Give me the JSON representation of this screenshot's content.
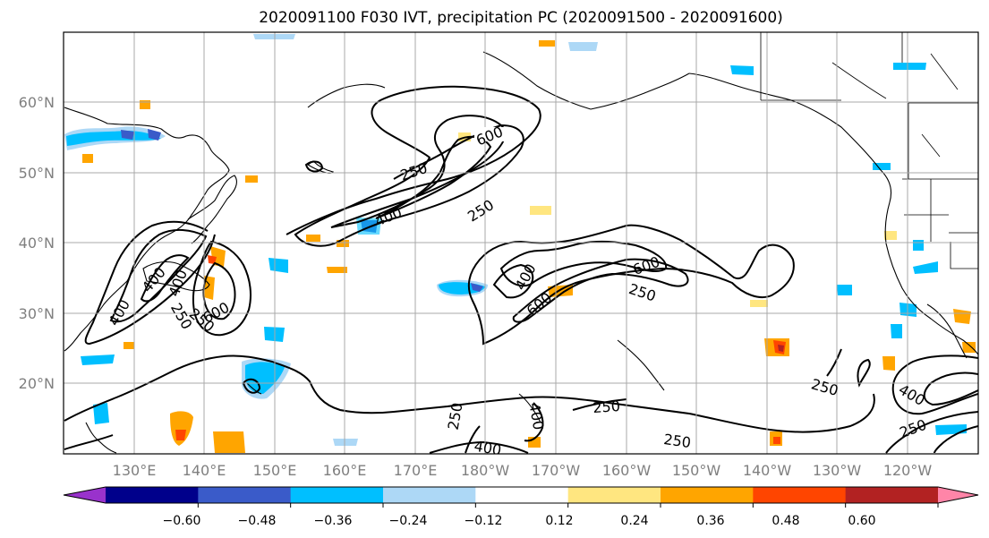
{
  "title": "2020091100 F030 IVT, precipitation PC (2020091500 - 2020091600)",
  "latitude_labels": [
    "60°N",
    "50°N",
    "40°N",
    "30°N",
    "20°N"
  ],
  "longitude_labels": [
    "130°E",
    "140°E",
    "150°E",
    "160°E",
    "170°E",
    "180°W",
    "170°W",
    "160°W",
    "150°W",
    "140°W",
    "130°W",
    "120°W"
  ],
  "colorbar": {
    "colors": [
      "#9932cc",
      "#00008b",
      "#3a5bc9",
      "#00bfff",
      "#add8f6",
      "#ffffff",
      "#ffe680",
      "#ffa500",
      "#ff4500",
      "#b22222",
      "#ff85a8"
    ],
    "tick_labels": [
      "−0.60",
      "−0.48",
      "−0.36",
      "−0.24",
      "−0.12",
      "0.12",
      "0.24",
      "0.36",
      "0.48",
      "0.60"
    ]
  },
  "ivt_contour_levels": [
    "250",
    "400",
    "600"
  ],
  "contour_labels": [
    "600",
    "250",
    "400",
    "250",
    "600",
    "400",
    "250",
    "600",
    "400",
    "400",
    "600",
    "250",
    "250",
    "400",
    "250",
    "250",
    "400",
    "250",
    "250",
    "250",
    "400",
    "400"
  ]
}
